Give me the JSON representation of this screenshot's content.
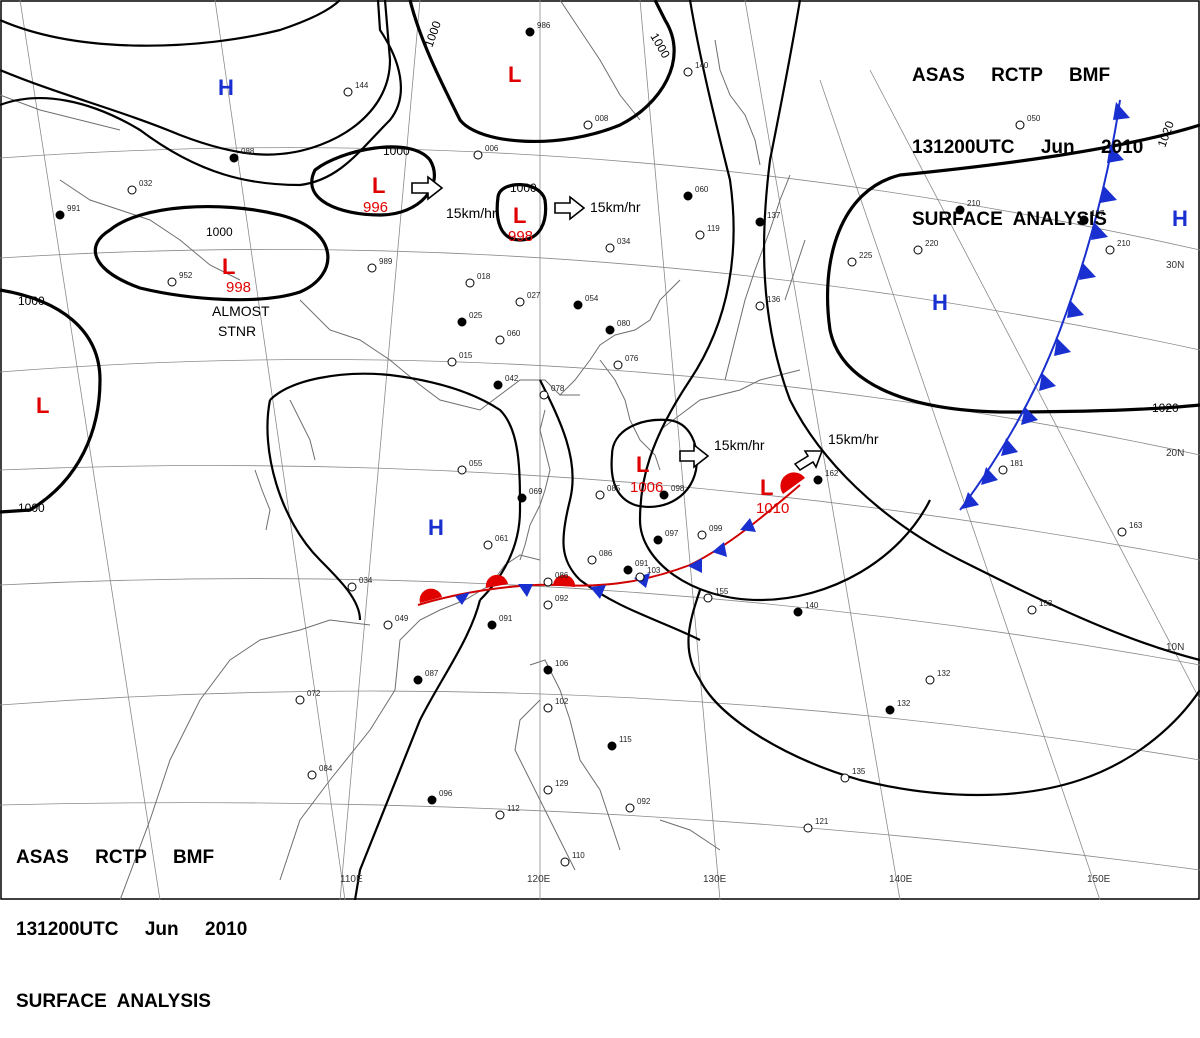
{
  "header": {
    "line1": "ASAS     RCTP     BMF",
    "line2": "131200UTC     Jun     2010",
    "line3": "SURFACE  ANALYSIS"
  },
  "longitude_labels": [
    "110E",
    "120E",
    "130E",
    "140E",
    "150E"
  ],
  "latitude_labels": [
    "30N",
    "20N",
    "10N"
  ],
  "isobar_labels": [
    "1000",
    "1000",
    "1000",
    "1000",
    "1000",
    "1000",
    "1000",
    "1020",
    "1020"
  ],
  "centers": {
    "low_sym": "L",
    "high_sym": "H",
    "pressures": [
      "996",
      "998",
      "998",
      "1006",
      "1010"
    ]
  },
  "movements": [
    "15km/hr",
    "15km/hr",
    "15km/hr",
    "15km/hr"
  ],
  "note": {
    "line1": "ALMOST",
    "line2": "STNR"
  },
  "fronts": {
    "stationary_color_warm": "#e00000",
    "stationary_color_cold": "#1a2fd0",
    "cold_color": "#1a2fd0"
  },
  "station_values": [
    "986",
    "006",
    "008",
    "060",
    "034",
    "027",
    "054",
    "060",
    "015",
    "025",
    "018",
    "989",
    "080",
    "076",
    "055",
    "069",
    "061",
    "086",
    "091",
    "086",
    "092",
    "091",
    "034",
    "049",
    "087",
    "072",
    "084",
    "096",
    "112",
    "110",
    "106",
    "102",
    "129",
    "115",
    "092",
    "155",
    "140",
    "153",
    "132",
    "132",
    "135",
    "121",
    "162",
    "163",
    "181",
    "137",
    "136",
    "119",
    "210",
    "220",
    "225",
    "197",
    "210",
    "050",
    "097",
    "099",
    "103",
    "042",
    "140",
    "144",
    "088",
    "032",
    "952",
    "991",
    "078",
    "085",
    "098"
  ]
}
